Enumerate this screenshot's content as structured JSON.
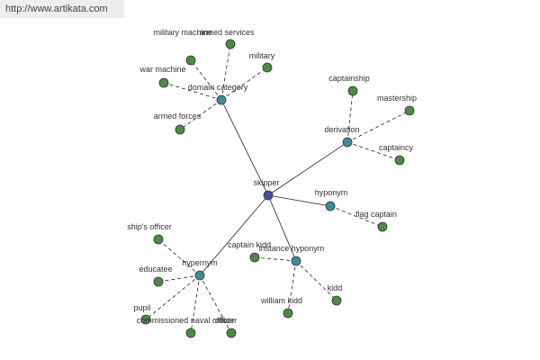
{
  "watermark": "http://www.artikata.com",
  "center": {
    "label": "skipper"
  },
  "relations": [
    {
      "label": "domain category",
      "children": [
        {
          "label": "military machine"
        },
        {
          "label": "armed services"
        },
        {
          "label": "military"
        },
        {
          "label": "war machine"
        },
        {
          "label": "armed forces"
        }
      ]
    },
    {
      "label": "derivation",
      "children": [
        {
          "label": "captainship"
        },
        {
          "label": "mastership"
        },
        {
          "label": "captaincy"
        }
      ]
    },
    {
      "label": "hyponym",
      "children": [
        {
          "label": "flag captain"
        }
      ]
    },
    {
      "label": "instance hyponym",
      "children": [
        {
          "label": "captain kidd"
        },
        {
          "label": "william kidd"
        },
        {
          "label": "kidd"
        }
      ]
    },
    {
      "label": "hypernym",
      "children": [
        {
          "label": "ship's officer"
        },
        {
          "label": "educatee"
        },
        {
          "label": "pupil"
        },
        {
          "label": "commissioned naval officer"
        },
        {
          "label": "officer"
        }
      ]
    }
  ]
}
